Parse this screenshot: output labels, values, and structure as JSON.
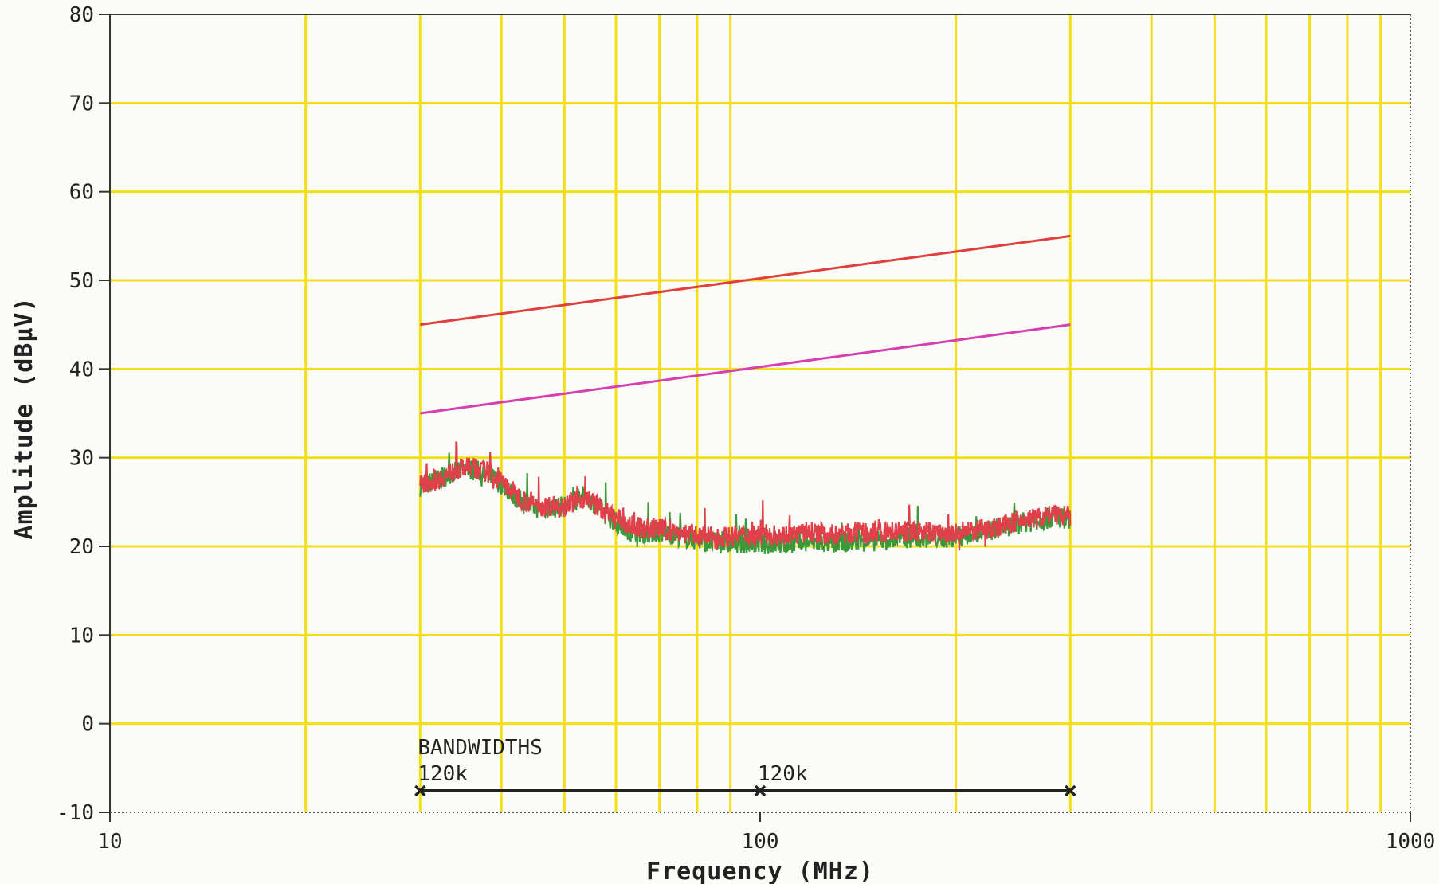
{
  "chart_data": {
    "type": "line",
    "xlabel": "Frequency (MHz)",
    "ylabel": "Amplitude (dBµV)",
    "x_scale": "log",
    "xlim": [
      10,
      1000
    ],
    "ylim": [
      -10,
      80
    ],
    "x_tick_labels": [
      {
        "value": 10,
        "label": "10"
      },
      {
        "value": 100,
        "label": "100"
      },
      {
        "value": 1000,
        "label": "1000"
      }
    ],
    "y_ticks": [
      -10,
      0,
      10,
      20,
      30,
      40,
      50,
      60,
      70,
      80
    ],
    "grid": true,
    "grid_color": "#f2de1a",
    "limit_lines": [
      {
        "color": "#e0403c",
        "x": [
          30,
          300
        ],
        "y": [
          45,
          55
        ]
      },
      {
        "color": "#d63fb0",
        "x": [
          30,
          300
        ],
        "y": [
          35,
          45
        ]
      }
    ],
    "series": [
      {
        "color": "#3a9a3a",
        "x": [
          30,
          32,
          34,
          36,
          38,
          40,
          43,
          46,
          50,
          54,
          58,
          62,
          66,
          70,
          75,
          80,
          85,
          90,
          95,
          100,
          110,
          120,
          130,
          140,
          150,
          160,
          170,
          180,
          190,
          200,
          210,
          220,
          240,
          260,
          280,
          300
        ],
        "y": [
          26.8,
          27.5,
          28.5,
          28.7,
          28.2,
          27.0,
          25.0,
          24.2,
          24.5,
          25.8,
          23.5,
          22.0,
          21.5,
          21.6,
          21.2,
          20.7,
          20.4,
          20.3,
          20.4,
          20.3,
          20.2,
          20.5,
          20.3,
          20.6,
          20.6,
          20.8,
          21.0,
          21.0,
          21.0,
          21.0,
          21.3,
          21.6,
          22.3,
          22.8,
          23.2,
          23.2
        ]
      },
      {
        "color": "#e0404a",
        "x": [
          30,
          32,
          34,
          36,
          38,
          40,
          43,
          46,
          50,
          54,
          58,
          62,
          66,
          70,
          75,
          80,
          85,
          90,
          95,
          100,
          110,
          120,
          130,
          140,
          150,
          160,
          170,
          180,
          190,
          200,
          210,
          220,
          240,
          260,
          280,
          300
        ],
        "y": [
          26.9,
          27.6,
          28.6,
          28.9,
          28.4,
          27.3,
          25.3,
          24.5,
          24.7,
          25.5,
          23.8,
          22.5,
          22.0,
          22.0,
          21.6,
          21.2,
          21.0,
          21.1,
          21.3,
          21.3,
          21.3,
          21.6,
          21.3,
          21.5,
          21.4,
          21.6,
          21.7,
          21.6,
          21.4,
          21.4,
          21.6,
          21.9,
          22.5,
          23.1,
          23.5,
          23.4
        ]
      }
    ],
    "bandwidths": {
      "title": "BANDWIDTHS",
      "segments": [
        {
          "label": "120k",
          "start": 30,
          "end": 100
        },
        {
          "label": "120k",
          "start": 100,
          "end": 300
        }
      ]
    }
  }
}
